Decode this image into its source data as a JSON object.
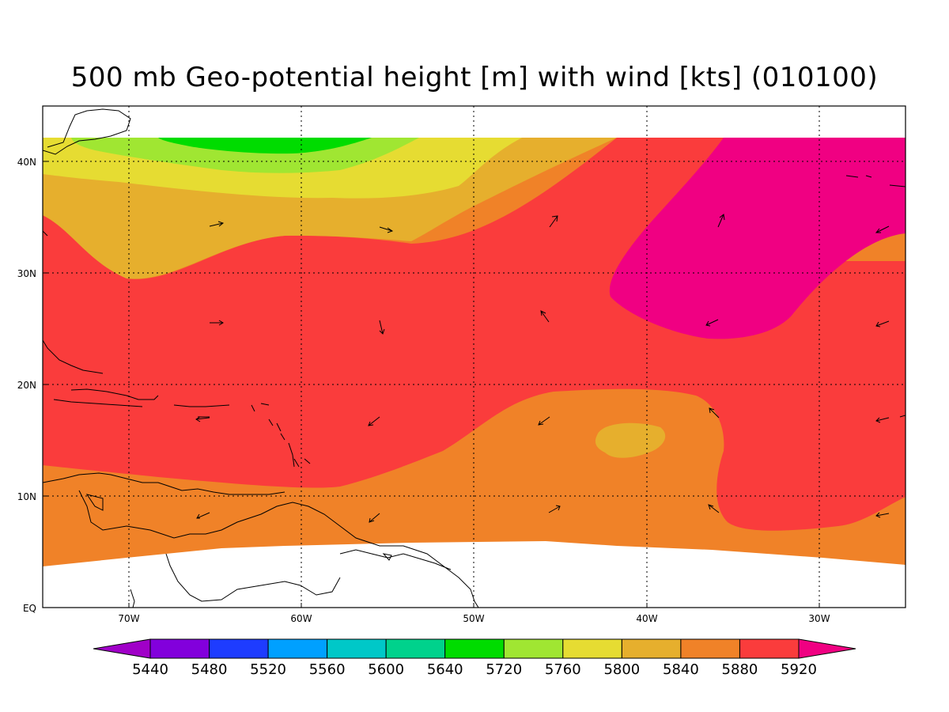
{
  "title": "500 mb Geo-potential height [m] with wind [kts] (010100)",
  "map": {
    "lon_range": [
      -75,
      -25
    ],
    "lat_range": [
      0,
      45
    ],
    "lat_ticks": [
      "EQ",
      "10N",
      "20N",
      "30N",
      "40N"
    ],
    "lon_ticks": [
      "70W",
      "60W",
      "50W",
      "40W",
      "30W"
    ]
  },
  "colorbar": {
    "labels": [
      "5440",
      "5480",
      "5520",
      "5560",
      "5600",
      "5640",
      "5720",
      "5760",
      "5800",
      "5840",
      "5880",
      "5920"
    ],
    "colors": [
      "#a000c8",
      "#8200dc",
      "#1e3cff",
      "#00a0ff",
      "#00c8c8",
      "#00d28c",
      "#00dc00",
      "#a0e632",
      "#e6dc32",
      "#e6af2d",
      "#f08228",
      "#fa3c3c",
      "#f00082"
    ]
  },
  "fill_colors": {
    "c5720": "#00dc00",
    "c5760": "#a0e632",
    "c5800": "#e6dc32",
    "c5840": "#e6af2d",
    "c5880": "#f08228",
    "c5920": "#fa3c3c",
    "c5960": "#f00082"
  }
}
